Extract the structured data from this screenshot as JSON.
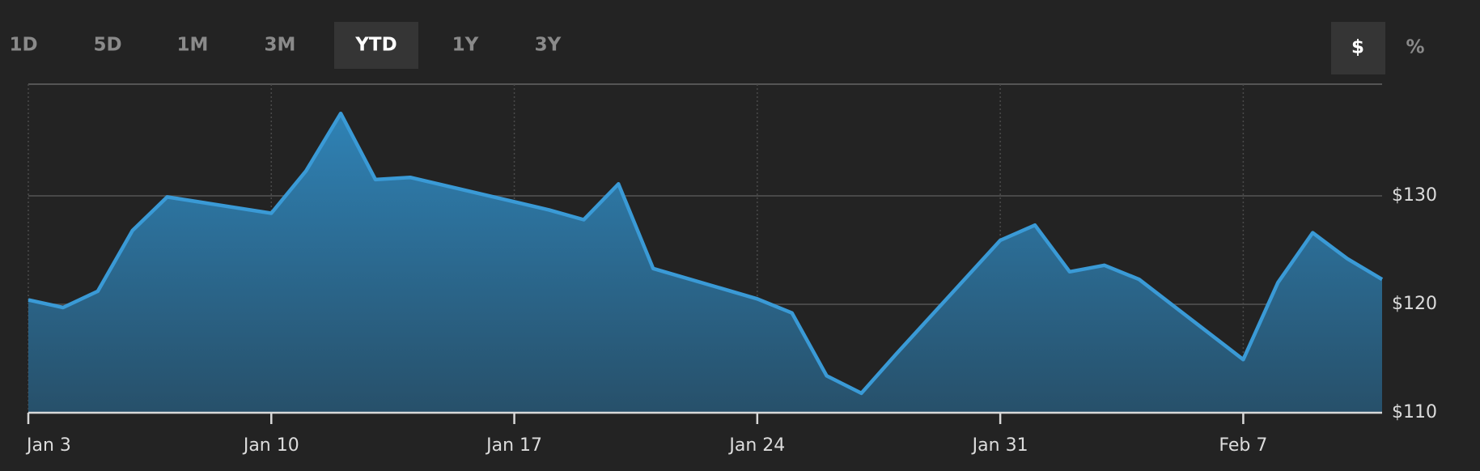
{
  "range_buttons": [
    "1D",
    "5D",
    "1M",
    "3M",
    "YTD",
    "1Y",
    "3Y"
  ],
  "active_range_index": 4,
  "unit_buttons": [
    "$",
    "%"
  ],
  "active_unit_index": 0,
  "chart_data": {
    "type": "area",
    "x": [
      "Jan 3",
      "Jan 4",
      "Jan 5",
      "Jan 6",
      "Jan 7",
      "Jan 10",
      "Jan 11",
      "Jan 12",
      "Jan 13",
      "Jan 14",
      "Jan 18",
      "Jan 19",
      "Jan 20",
      "Jan 21",
      "Jan 24",
      "Jan 25",
      "Jan 26",
      "Jan 27",
      "Jan 28",
      "Jan 31",
      "Feb 1",
      "Feb 2",
      "Feb 3",
      "Feb 4",
      "Feb 7",
      "Feb 8",
      "Feb 9",
      "Feb 10",
      "Feb 11"
    ],
    "values": [
      120.4,
      119.7,
      121.2,
      126.8,
      129.9,
      128.4,
      132.3,
      137.6,
      131.5,
      131.7,
      128.7,
      127.8,
      131.1,
      123.3,
      120.5,
      119.2,
      113.4,
      111.8,
      115.4,
      125.9,
      127.3,
      123.0,
      123.6,
      122.3,
      114.9,
      122.0,
      126.6,
      124.2,
      122.3
    ],
    "color": "#3a9ad6",
    "xlim": [
      "Jan 3",
      "Feb 11"
    ],
    "xticks": [
      "Jan 3",
      "Jan 10",
      "Jan 17",
      "Jan 24",
      "Jan 31",
      "Feb 7"
    ],
    "ylim": [
      110,
      140.3
    ],
    "yticks": [
      {
        "value": 110,
        "label": "$110"
      },
      {
        "value": 120,
        "label": "$120"
      },
      {
        "value": 130,
        "label": "$130"
      }
    ],
    "grid": true
  }
}
